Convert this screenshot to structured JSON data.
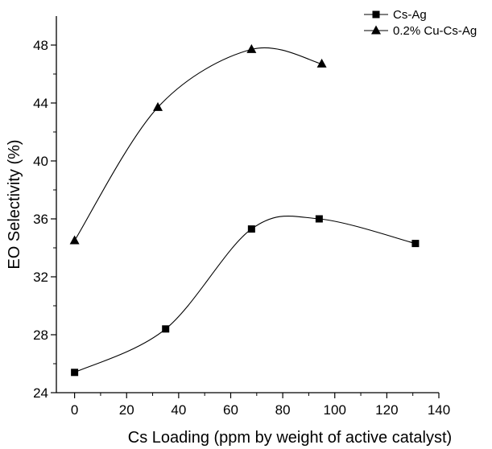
{
  "chart_data": {
    "type": "line",
    "xlabel": "Cs Loading (ppm by weight of active catalyst)",
    "ylabel": "EO Selectivity (%)",
    "xlim": [
      -7,
      140
    ],
    "ylim": [
      24,
      50
    ],
    "xticks": [
      0,
      20,
      40,
      60,
      80,
      100,
      120,
      140
    ],
    "yticks": [
      24,
      28,
      32,
      36,
      40,
      44,
      48
    ],
    "grid": false,
    "legend_position": "top-right",
    "series": [
      {
        "name": "Cs-Ag",
        "marker": "square",
        "x": [
          0,
          35,
          68,
          94,
          131
        ],
        "y": [
          25.4,
          28.4,
          35.3,
          36.0,
          34.3
        ]
      },
      {
        "name": "0.2% Cu-Cs-Ag",
        "marker": "triangle",
        "x": [
          0,
          32,
          68,
          95
        ],
        "y": [
          34.5,
          43.7,
          47.7,
          46.7
        ]
      }
    ]
  }
}
